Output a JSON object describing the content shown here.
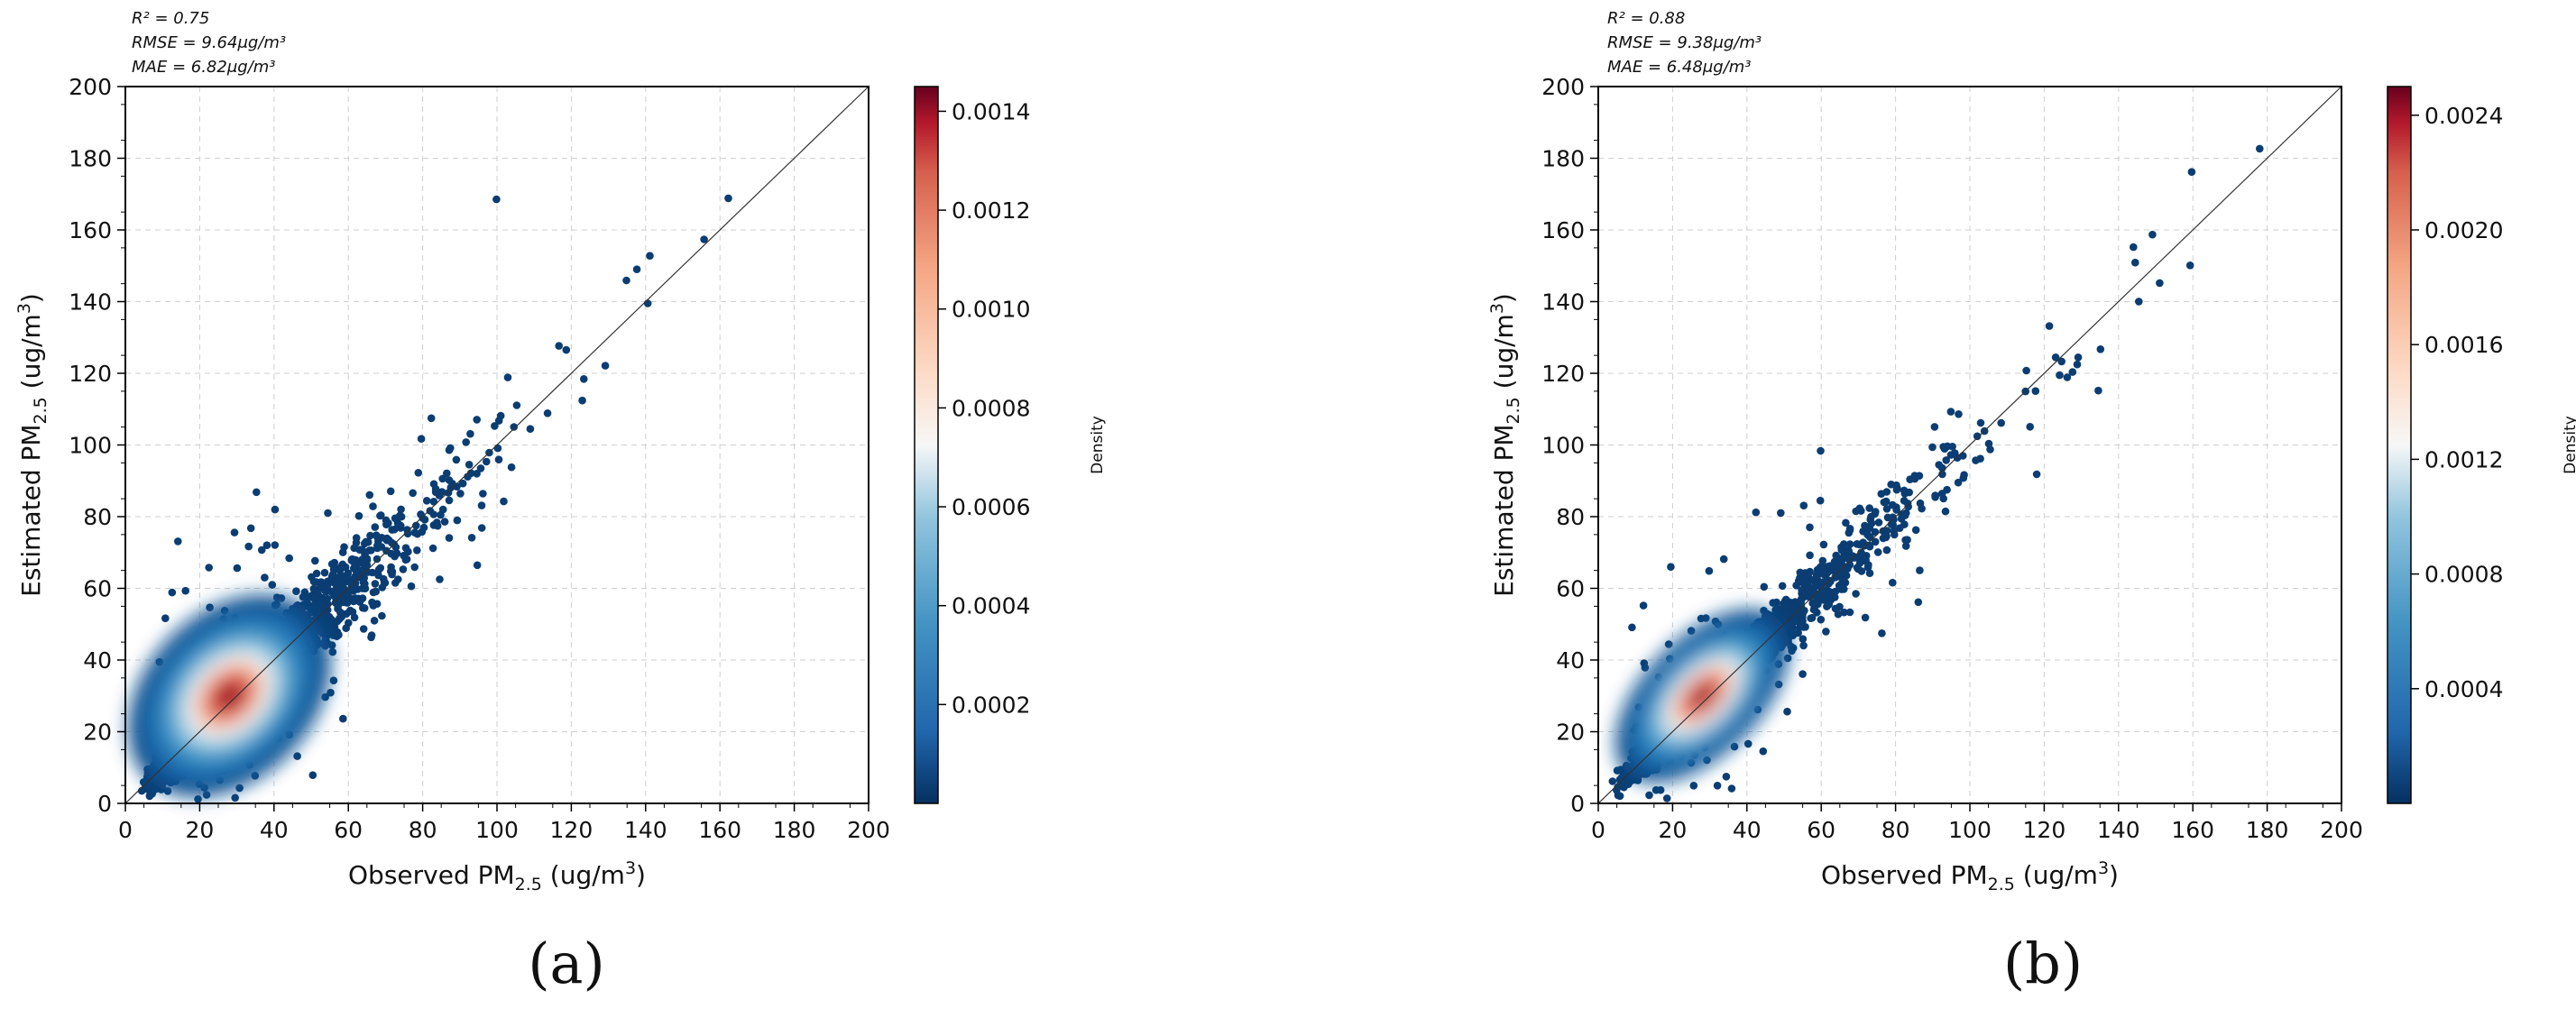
{
  "chart_data": [
    {
      "type": "scatter",
      "panel_label": "(a)",
      "xlabel": "Observed PM",
      "xlabel_sub": "2.5",
      "xlabel_unit": " (ug/m",
      "xlabel_sup": "3",
      "xlabel_close": ")",
      "ylabel": "Estimated PM",
      "ylabel_sub": "2.5",
      "ylabel_unit": " (ug/m",
      "ylabel_sup": "3",
      "ylabel_close": ")",
      "xlim": [
        0,
        200
      ],
      "ylim": [
        0,
        200
      ],
      "xticks": [
        "0",
        "20",
        "40",
        "60",
        "80",
        "100",
        "120",
        "140",
        "160",
        "180",
        "200"
      ],
      "yticks": [
        "0",
        "20",
        "40",
        "60",
        "80",
        "100",
        "120",
        "140",
        "160",
        "180",
        "200"
      ],
      "stats": {
        "r2": "R² = 0.75",
        "rmse": "RMSE = 9.64μg/m³",
        "mae": "MAE = 6.82μg/m³"
      },
      "colorbar": {
        "label": "Density",
        "range": [
          0,
          0.00145
        ],
        "ticks": [
          0.0002,
          0.0004,
          0.0006,
          0.0008,
          0.001,
          0.0012,
          0.0014
        ],
        "tick_labels": [
          "0.0002",
          "0.0004",
          "0.0006",
          "0.0008",
          "0.0010",
          "0.0012",
          "0.0014"
        ]
      },
      "density_peak": [
        28,
        30
      ],
      "density_spread": [
        14,
        10
      ],
      "density_angle_deg": 45,
      "scatter_sigma": 11,
      "grid": true,
      "reference_line": "1:1",
      "seed": 11
    },
    {
      "type": "scatter",
      "panel_label": "(b)",
      "xlabel": "Observed PM",
      "xlabel_sub": "2.5",
      "xlabel_unit": " (ug/m",
      "xlabel_sup": "3",
      "xlabel_close": ")",
      "ylabel": "Estimated PM",
      "ylabel_sub": "2.5",
      "ylabel_unit": " (ug/m",
      "ylabel_sup": "3",
      "ylabel_close": ")",
      "xlim": [
        0,
        200
      ],
      "ylim": [
        0,
        200
      ],
      "xticks": [
        "0",
        "20",
        "40",
        "60",
        "80",
        "100",
        "120",
        "140",
        "160",
        "180",
        "200"
      ],
      "yticks": [
        "0",
        "20",
        "40",
        "60",
        "80",
        "100",
        "120",
        "140",
        "160",
        "180",
        "200"
      ],
      "stats": {
        "r2": "R² = 0.88",
        "rmse": "RMSE = 9.38μg/m³",
        "mae": "MAE = 6.48μg/m³"
      },
      "colorbar": {
        "label": "Density",
        "range": [
          0,
          0.0025
        ],
        "ticks": [
          0.0004,
          0.0008,
          0.0012,
          0.0016,
          0.002,
          0.0024
        ],
        "tick_labels": [
          "0.0004",
          "0.0008",
          "0.0012",
          "0.0016",
          "0.0020",
          "0.0024"
        ]
      },
      "density_peak": [
        28,
        30
      ],
      "density_spread": [
        13,
        7
      ],
      "density_angle_deg": 45,
      "scatter_sigma": 8,
      "grid": true,
      "reference_line": "1:1",
      "seed": 29
    }
  ]
}
